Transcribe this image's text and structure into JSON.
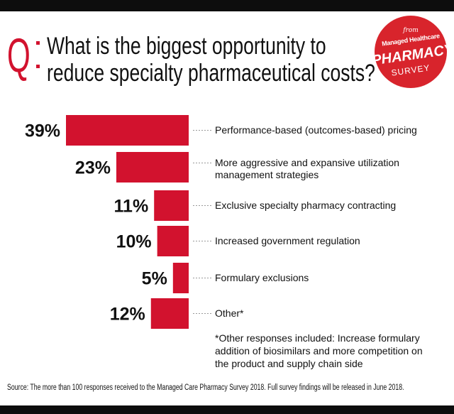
{
  "header": {
    "q_letter": "Q",
    "question_line1": "What is the biggest opportunity to",
    "question_line2": "reduce specialty pharmaceutical costs?"
  },
  "badge": {
    "from": "from",
    "brand": "Managed Healthcare",
    "title": "PHARMACY",
    "subtitle": "SURVEY"
  },
  "colors": {
    "accent": "#d2122e",
    "bar": "#d2122e",
    "leader": "#999999",
    "frame": "#0d0d0d"
  },
  "chart_data": {
    "type": "bar",
    "orientation": "horizontal",
    "bar_alignment": "right",
    "categories": [
      "Performance-based (outcomes-based) pricing",
      "More aggressive and expansive utilization management strategies",
      "Exclusive specialty pharmacy contracting",
      "Increased government regulation",
      "Formulary exclusions",
      "Other*"
    ],
    "category_lines": [
      [
        "Performance-based (outcomes-based) pricing"
      ],
      [
        "More aggressive and expansive utilization",
        "management strategies"
      ],
      [
        "Exclusive specialty pharmacy contracting"
      ],
      [
        "Increased government regulation"
      ],
      [
        "Formulary exclusions"
      ],
      [
        "Other*"
      ]
    ],
    "values": [
      39,
      23,
      11,
      10,
      5,
      12
    ],
    "value_labels": [
      "39%",
      "23%",
      "11%",
      "10%",
      "5%",
      "12%"
    ],
    "unit": "%",
    "xlim": [
      0,
      39
    ],
    "grid": false,
    "legend": "none"
  },
  "footnote": "*Other responses included: Increase formulary addition of biosimilars and more competition on the product and supply chain side",
  "source": "Source: The more than 100 responses received to the Managed Care Pharmacy Survey 2018. Full survey findings will be released in June 2018."
}
